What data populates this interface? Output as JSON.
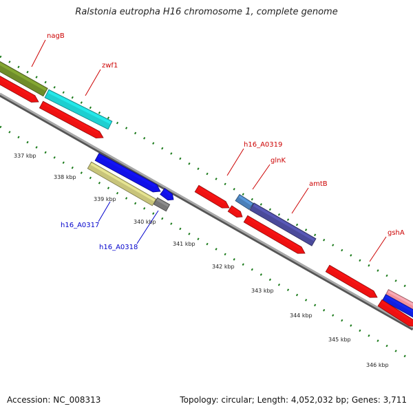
{
  "title": "Ralstonia eutropha H16 chromosome 1, complete genome",
  "footer": {
    "accession": "Accession: NC_008313",
    "summary": "Topology: circular; Length: 4,052,032 bp; Genes: 3,711"
  },
  "colors": {
    "forward_label": "#cc0000",
    "reverse_label": "#0000cc",
    "tick": "#1a7a1a",
    "backbone": "#8a8a8a"
  },
  "scale_labels": [
    "337 kbp",
    "338 kbp",
    "339 kbp",
    "340 kbp",
    "341 kbp",
    "342 kbp",
    "343 kbp",
    "344 kbp",
    "345 kbp",
    "346 kbp"
  ],
  "gene_labels": {
    "forward": [
      "nagB",
      "zwf1",
      "h16_A0319",
      "glnK",
      "amtB",
      "gshA"
    ],
    "reverse": [
      "h16_A0317",
      "h16_A0318"
    ]
  }
}
